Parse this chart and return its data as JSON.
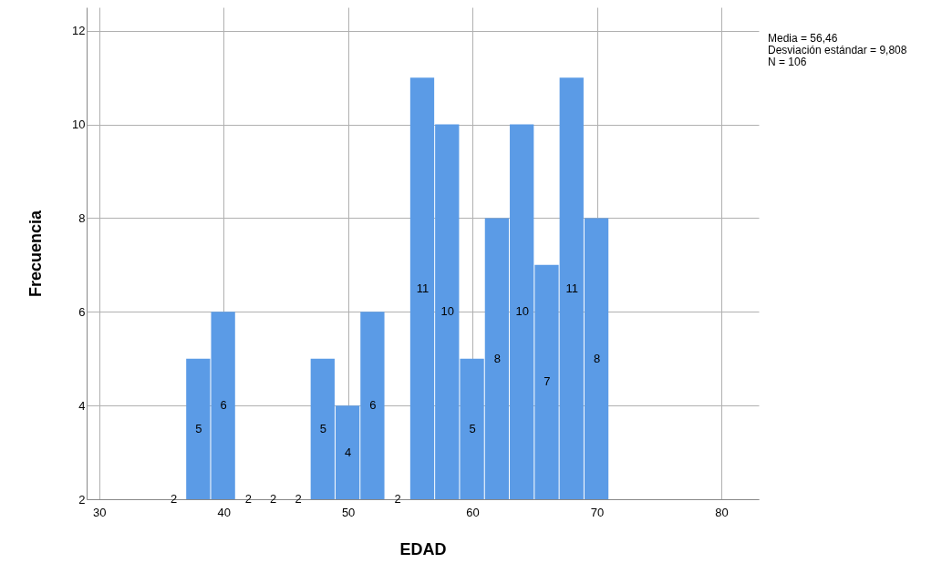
{
  "chart_data": {
    "type": "histogram",
    "bins": [
      35,
      37,
      39,
      41,
      43,
      45,
      47,
      49,
      51,
      53,
      55,
      57,
      59,
      61,
      63,
      65,
      67,
      69,
      71
    ],
    "values": [
      2,
      5,
      6,
      2,
      2,
      2,
      5,
      4,
      6,
      2,
      11,
      10,
      5,
      8,
      10,
      7,
      11,
      8
    ],
    "color": "#5b9be6",
    "xlabel": "EDAD",
    "ylabel": "Frecuencia",
    "xlim": [
      29,
      83
    ],
    "xticks": [
      30,
      40,
      50,
      60,
      70,
      80
    ],
    "ylim": [
      2,
      12.5
    ],
    "yticks": [
      2,
      4,
      6,
      8,
      10,
      12
    ],
    "grid": true,
    "data_labels": true,
    "annotations": [
      "Media = 56,46",
      "Desviación estándar = 9,808",
      "N = 106"
    ]
  }
}
